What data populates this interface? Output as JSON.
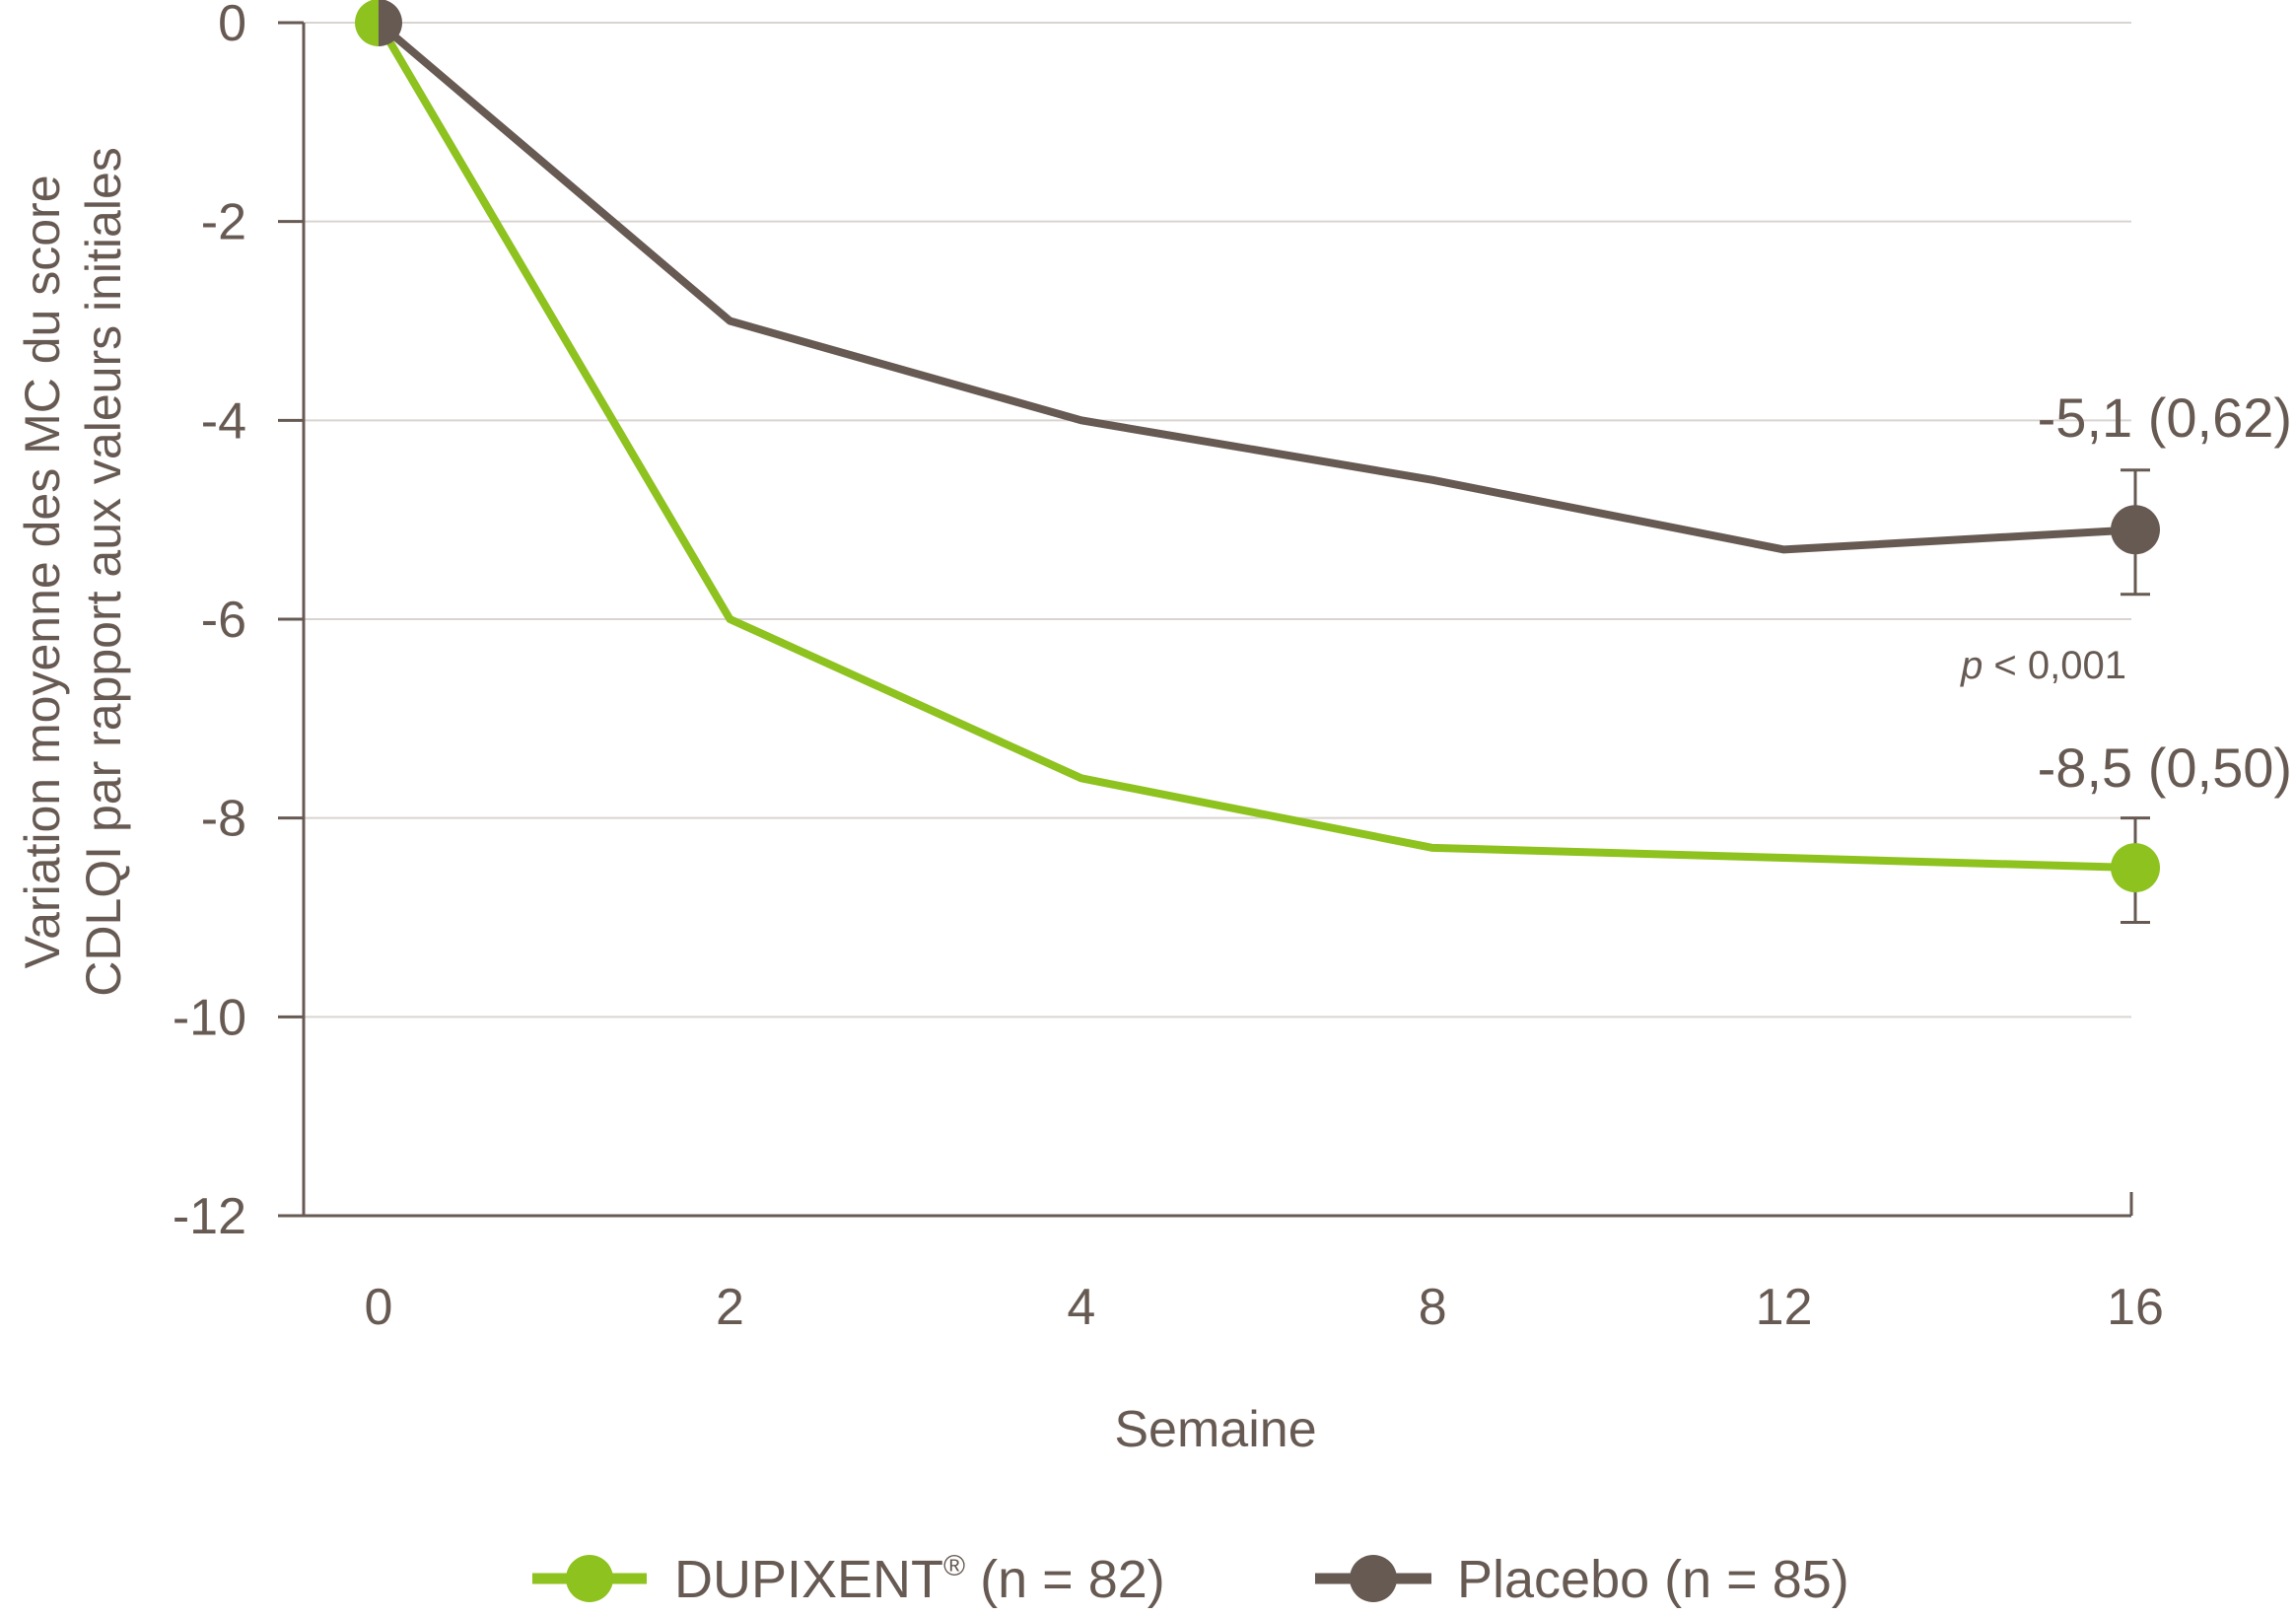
{
  "chart_data": {
    "type": "line",
    "xlabel": "Semaine",
    "ylabel_line1": "Variation moyenne des MC du score",
    "ylabel_line2": "CDLQI par rapport aux valeurs initiales",
    "categories": [
      "0",
      "2",
      "4",
      "8",
      "12",
      "16"
    ],
    "ylim": [
      -12,
      0
    ],
    "yticks": [
      0,
      -2,
      -4,
      -6,
      -8,
      -10,
      -12
    ],
    "ytick_labels": [
      "0",
      "-2",
      "-4",
      "-6",
      "-8",
      "-10",
      "-12"
    ],
    "grid": true,
    "series": [
      {
        "name": "Placebo",
        "legend_label": "Placebo (n = 85)",
        "color": "#675a53",
        "values": [
          0,
          -3.0,
          -4.0,
          -4.6,
          -5.3,
          -5.1
        ],
        "end_label": "-5,1 (0,62)",
        "error_low": -5.75,
        "error_high": -4.5
      },
      {
        "name": "DUPIXENT",
        "legend_label": "DUPIXENT",
        "legend_mark": "®",
        "legend_suffix": " (n = 82)",
        "color": "#8dc21f",
        "values": [
          0,
          -6.0,
          -7.6,
          -8.3,
          -8.4,
          -8.5
        ],
        "end_label": "-8,5 (0,50)",
        "error_low": -9.05,
        "error_high": -8.0
      }
    ],
    "annotation": {
      "p_symbol": "p",
      "p_text": " < 0,001"
    },
    "legend_position": "bottom-center"
  }
}
